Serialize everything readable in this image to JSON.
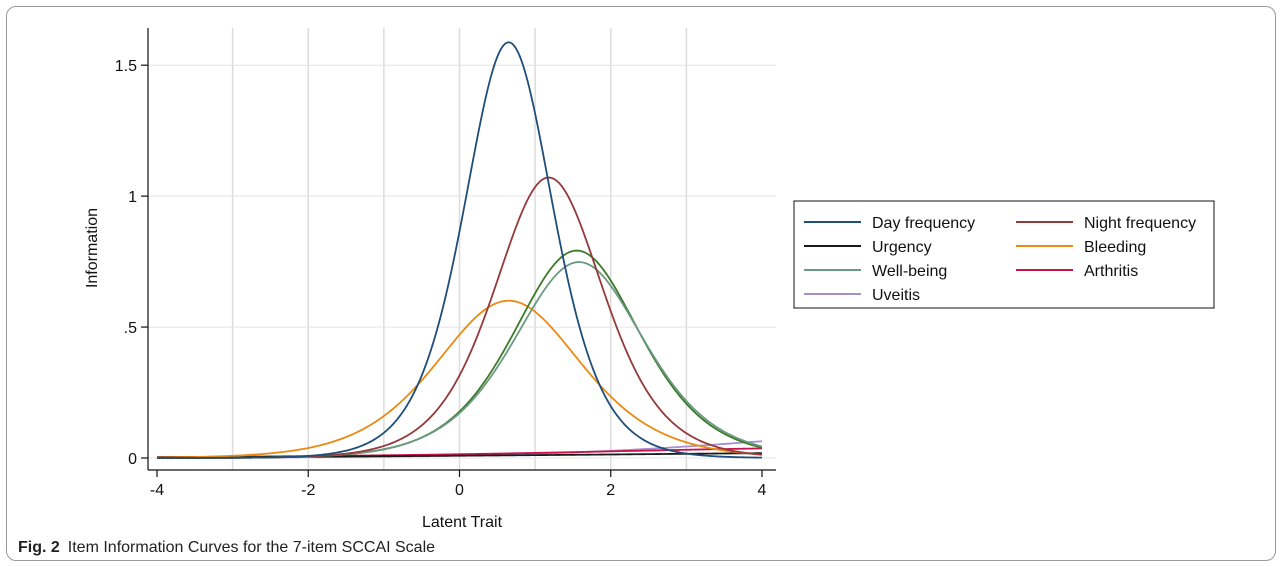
{
  "figure": {
    "label": "Fig. 2",
    "caption": "Item Information Curves for the 7-item SCCAI Scale"
  },
  "chart_data": {
    "type": "line",
    "title": "",
    "xlabel": "Latent Trait",
    "ylabel": "Information",
    "xlim": [
      -4,
      4
    ],
    "ylim": [
      0,
      1.6
    ],
    "xticks": [
      -4,
      -2,
      0,
      2,
      4
    ],
    "xtick_labels": [
      "-4",
      "-2",
      "0",
      "2",
      "4"
    ],
    "yticks": [
      0,
      0.5,
      1,
      1.5
    ],
    "ytick_labels": [
      "0",
      ".5",
      "1",
      "1.5"
    ],
    "x_gridlines": [
      -3,
      -2,
      -1,
      0,
      1,
      2,
      3
    ],
    "grid": true,
    "legend_position": "right",
    "series": [
      {
        "name": "Day frequency",
        "color": "#1f4e79",
        "a": 2.52,
        "b": 0.65
      },
      {
        "name": "Night frequency",
        "color": "#943a3a",
        "a": 2.07,
        "b": 1.18
      },
      {
        "name": "Urgency",
        "color": "#1a1a1a",
        "a": 0.3,
        "b": 7.0
      },
      {
        "name": "Bleeding",
        "color": "#ea8a12",
        "a": 1.55,
        "b": 0.65
      },
      {
        "name": "Well-being",
        "color": "#6a9a80",
        "a": 1.73,
        "b": 1.58
      },
      {
        "name": "Arthritis",
        "color": "#c8134a",
        "a": 0.4,
        "b": 5.5
      },
      {
        "name": "Uveitis",
        "color": "#a98ecf",
        "a": 0.6,
        "b": 6.0
      },
      {
        "name": "",
        "color": "#3d7a2a",
        "a": 1.78,
        "b": 1.55
      }
    ]
  }
}
